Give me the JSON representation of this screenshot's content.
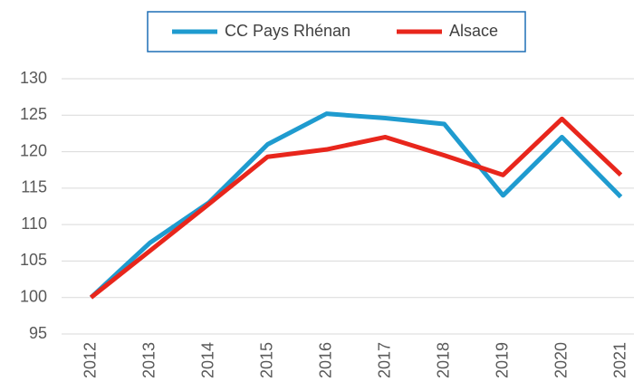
{
  "chart_data": {
    "type": "line",
    "categories": [
      "2012",
      "2013",
      "2014",
      "2015",
      "2016",
      "2017",
      "2018",
      "2019",
      "2020",
      "2021"
    ],
    "series": [
      {
        "name": "CC Pays Rhénan",
        "color": "#1f9bcf",
        "values": [
          100,
          107.5,
          113,
          121,
          125.2,
          124.6,
          123.8,
          114,
          122,
          113.8
        ]
      },
      {
        "name": "Alsace",
        "color": "#e8261c",
        "values": [
          100,
          106.4,
          112.8,
          119.3,
          120.3,
          122,
          119.5,
          116.8,
          124.5,
          116.8
        ]
      }
    ],
    "ylim": [
      95,
      130
    ],
    "yticks": [
      95,
      100,
      105,
      110,
      115,
      120,
      125,
      130
    ],
    "grid": true,
    "legend": "top"
  }
}
